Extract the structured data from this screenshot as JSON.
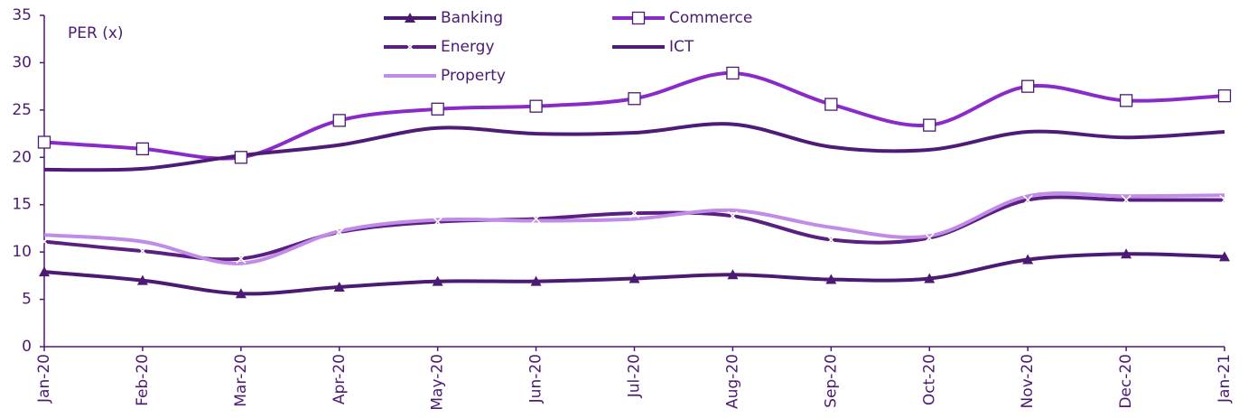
{
  "chart_data": {
    "type": "line",
    "y_label": "PER (x)",
    "categories": [
      "Jan-20",
      "Feb-20",
      "Mar-20",
      "Apr-20",
      "May-20",
      "Jun-20",
      "Jul-20",
      "Aug-20",
      "Sep-20",
      "Oct-20",
      "Nov-20",
      "Dec-20",
      "Jan-21"
    ],
    "series": [
      {
        "name": "Banking",
        "color": "#4b1a73",
        "marker": "triangle",
        "values": [
          7.9,
          7.0,
          5.6,
          6.3,
          6.9,
          6.9,
          7.2,
          7.6,
          7.1,
          7.2,
          9.2,
          9.8,
          9.5
        ]
      },
      {
        "name": "Commerce",
        "color": "#8a2bc9",
        "marker": "square",
        "values": [
          21.6,
          20.9,
          20.0,
          23.9,
          25.1,
          25.4,
          26.2,
          28.9,
          25.6,
          23.4,
          27.5,
          26.0,
          26.5
        ]
      },
      {
        "name": "Energy",
        "color": "#5a1f80",
        "marker": "x",
        "values": [
          11.1,
          10.1,
          9.3,
          12.1,
          13.2,
          13.5,
          14.1,
          13.8,
          11.3,
          11.5,
          15.5,
          15.5,
          15.5
        ]
      },
      {
        "name": "ICT",
        "color": "#4e1c78",
        "marker": "none",
        "values": [
          18.7,
          18.8,
          20.2,
          21.3,
          23.1,
          22.5,
          22.6,
          23.5,
          21.1,
          20.8,
          22.7,
          22.1,
          22.7
        ]
      },
      {
        "name": "Property",
        "color": "#c18be8",
        "marker": "none",
        "values": [
          11.8,
          11.1,
          8.8,
          12.2,
          13.4,
          13.3,
          13.5,
          14.4,
          12.6,
          11.7,
          15.9,
          15.9,
          16.0
        ]
      }
    ],
    "ylim": [
      0,
      35
    ],
    "yticks": [
      0,
      5,
      10,
      15,
      20,
      25,
      30,
      35
    ],
    "grid": false,
    "legend": "top"
  }
}
